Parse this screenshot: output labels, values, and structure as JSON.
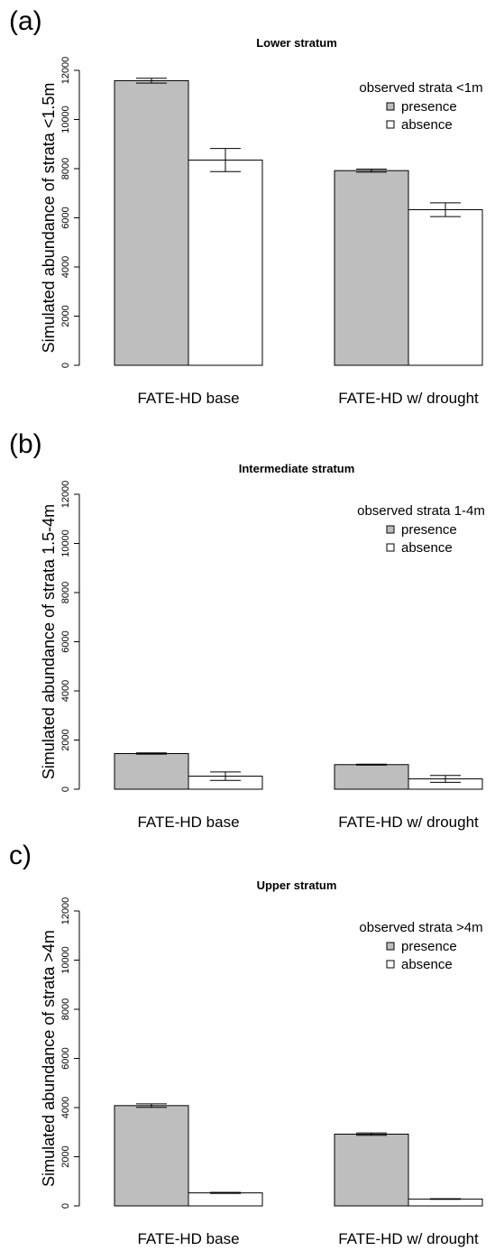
{
  "chart_data": [
    {
      "type": "bar",
      "panel_label": "(a)",
      "title": "Lower stratum",
      "ylabel": "Simulated  abundance of strata <1.5m",
      "ylim": [
        0,
        12000
      ],
      "yticks": [
        0,
        2000,
        4000,
        6000,
        8000,
        10000,
        12000
      ],
      "categories": [
        "FATE-HD base",
        "FATE-HD w/ drought"
      ],
      "legend_title": "observed strata <1m",
      "series": [
        {
          "name": "presence",
          "color": "#bebebe",
          "values": [
            11580,
            7920
          ],
          "error": [
            100,
            60
          ]
        },
        {
          "name": "absence",
          "color": "#ffffff",
          "values": [
            8350,
            6330
          ],
          "error": [
            470,
            280
          ]
        }
      ]
    },
    {
      "type": "bar",
      "panel_label": "(b)",
      "title": "Intermediate stratum",
      "ylabel": "Simulated  abundance of strata 1.5-4m",
      "ylim": [
        0,
        12000
      ],
      "yticks": [
        0,
        2000,
        4000,
        6000,
        8000,
        10000,
        12000
      ],
      "categories": [
        "FATE-HD base",
        "FATE-HD w/ drought"
      ],
      "legend_title": "observed strata 1-4m",
      "series": [
        {
          "name": "presence",
          "color": "#bebebe",
          "values": [
            1450,
            1000
          ],
          "error": [
            25,
            20
          ]
        },
        {
          "name": "absence",
          "color": "#ffffff",
          "values": [
            530,
            420
          ],
          "error": [
            170,
            140
          ]
        }
      ]
    },
    {
      "type": "bar",
      "panel_label": "c)",
      "title": "Upper stratum",
      "ylabel": "Simulated  abundance of strata >4m",
      "ylim": [
        0,
        12000
      ],
      "yticks": [
        0,
        2000,
        4000,
        6000,
        8000,
        10000,
        12000
      ],
      "categories": [
        "FATE-HD base",
        "FATE-HD w/ drought"
      ],
      "legend_title": "observed strata >4m",
      "series": [
        {
          "name": "presence",
          "color": "#bebebe",
          "values": [
            4080,
            2920
          ],
          "error": [
            70,
            50
          ]
        },
        {
          "name": "absence",
          "color": "#ffffff",
          "values": [
            530,
            280
          ],
          "error": [
            20,
            15
          ]
        }
      ]
    }
  ]
}
